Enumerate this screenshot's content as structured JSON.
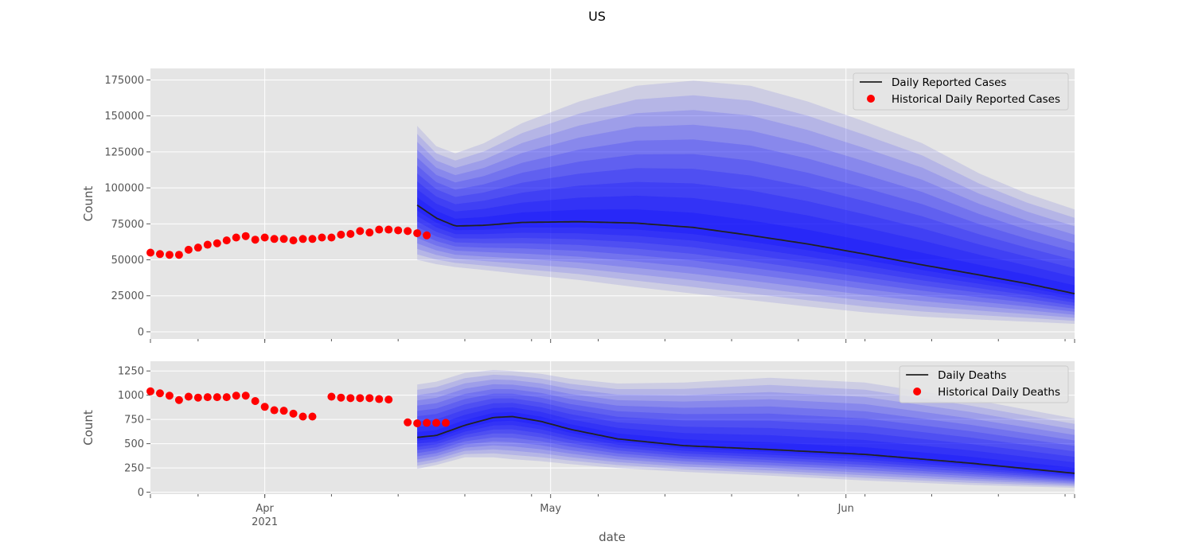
{
  "figure": {
    "title": "US",
    "xlabel": "date",
    "x_ticks": [
      {
        "date": "2021-04-01",
        "label": "Apr",
        "sub": "2021"
      },
      {
        "date": "2021-05-01",
        "label": "May",
        "sub": ""
      },
      {
        "date": "2021-06-01",
        "label": "Jun",
        "sub": ""
      }
    ],
    "minor_step_days": 7
  },
  "colors": {
    "panel_bg": "#e5e5e5",
    "grid": "#ffffff",
    "band": "#0000ff",
    "median": "#222222",
    "historical": "#ff0000"
  },
  "chart_data": [
    {
      "type": "line",
      "name": "cases",
      "ylabel": "Count",
      "xlim": [
        "2021-03-20",
        "2021-06-25"
      ],
      "ylim": [
        -5000,
        183000
      ],
      "y_ticks": [
        0,
        25000,
        50000,
        75000,
        100000,
        125000,
        150000,
        175000
      ],
      "legend": {
        "position": "top-right",
        "line_label": "Daily Reported Cases",
        "dot_label": "Historical Daily Reported Cases"
      },
      "historical": {
        "start": "2021-03-20",
        "values": [
          55000,
          54000,
          53500,
          53500,
          57000,
          58500,
          60500,
          61500,
          63500,
          65500,
          66500,
          64000,
          65500,
          64500,
          64500,
          63500,
          64500,
          64500,
          65500,
          65500,
          67500,
          68000,
          70000,
          69000,
          71000,
          71000,
          70500,
          70000,
          68500,
          67000
        ]
      },
      "forecast": {
        "x": [
          "2021-04-17",
          "2021-04-19",
          "2021-04-21",
          "2021-04-24",
          "2021-04-28",
          "2021-05-04",
          "2021-05-10",
          "2021-05-16",
          "2021-05-22",
          "2021-05-28",
          "2021-06-03",
          "2021-06-09",
          "2021-06-15",
          "2021-06-20",
          "2021-06-25"
        ],
        "median": [
          88000,
          79000,
          73500,
          74000,
          76000,
          76500,
          75500,
          72500,
          67000,
          61000,
          54000,
          46500,
          39500,
          33500,
          26500
        ],
        "outer_upper": [
          143000,
          129000,
          124000,
          131000,
          145000,
          160000,
          171000,
          174500,
          171000,
          160000,
          146000,
          131000,
          110000,
          96000,
          85000
        ],
        "outer_lower": [
          50000,
          47000,
          45000,
          43000,
          40000,
          36000,
          31000,
          26500,
          22000,
          17500,
          13500,
          10500,
          8500,
          7000,
          5500
        ]
      }
    },
    {
      "type": "line",
      "name": "deaths",
      "ylabel": "Count",
      "xlim": [
        "2021-03-20",
        "2021-06-25"
      ],
      "ylim": [
        -20,
        1350
      ],
      "y_ticks": [
        0,
        250,
        500,
        750,
        1000,
        1250
      ],
      "legend": {
        "position": "top-right",
        "line_label": "Daily Deaths",
        "dot_label": "Historical Daily Deaths"
      },
      "historical": {
        "start": "2021-03-20",
        "values": [
          1040,
          1020,
          995,
          950,
          985,
          975,
          980,
          980,
          980,
          995,
          995,
          940,
          880,
          845,
          840,
          810,
          780,
          780,
          null,
          985,
          975,
          970,
          970,
          970,
          960,
          955,
          null,
          720,
          710,
          715,
          715,
          715
        ]
      },
      "forecast": {
        "x": [
          "2021-04-17",
          "2021-04-19",
          "2021-04-22",
          "2021-04-25",
          "2021-04-27",
          "2021-04-30",
          "2021-05-03",
          "2021-05-08",
          "2021-05-15",
          "2021-05-24",
          "2021-06-03",
          "2021-06-14",
          "2021-06-25"
        ],
        "median": [
          565,
          585,
          690,
          770,
          780,
          730,
          650,
          550,
          480,
          440,
          390,
          300,
          195
        ],
        "outer_upper": [
          1110,
          1140,
          1230,
          1260,
          1250,
          1220,
          1170,
          1120,
          1130,
          1180,
          1130,
          960,
          760
        ],
        "outer_lower": [
          240,
          280,
          360,
          360,
          340,
          320,
          290,
          250,
          210,
          170,
          120,
          75,
          45
        ]
      }
    }
  ]
}
